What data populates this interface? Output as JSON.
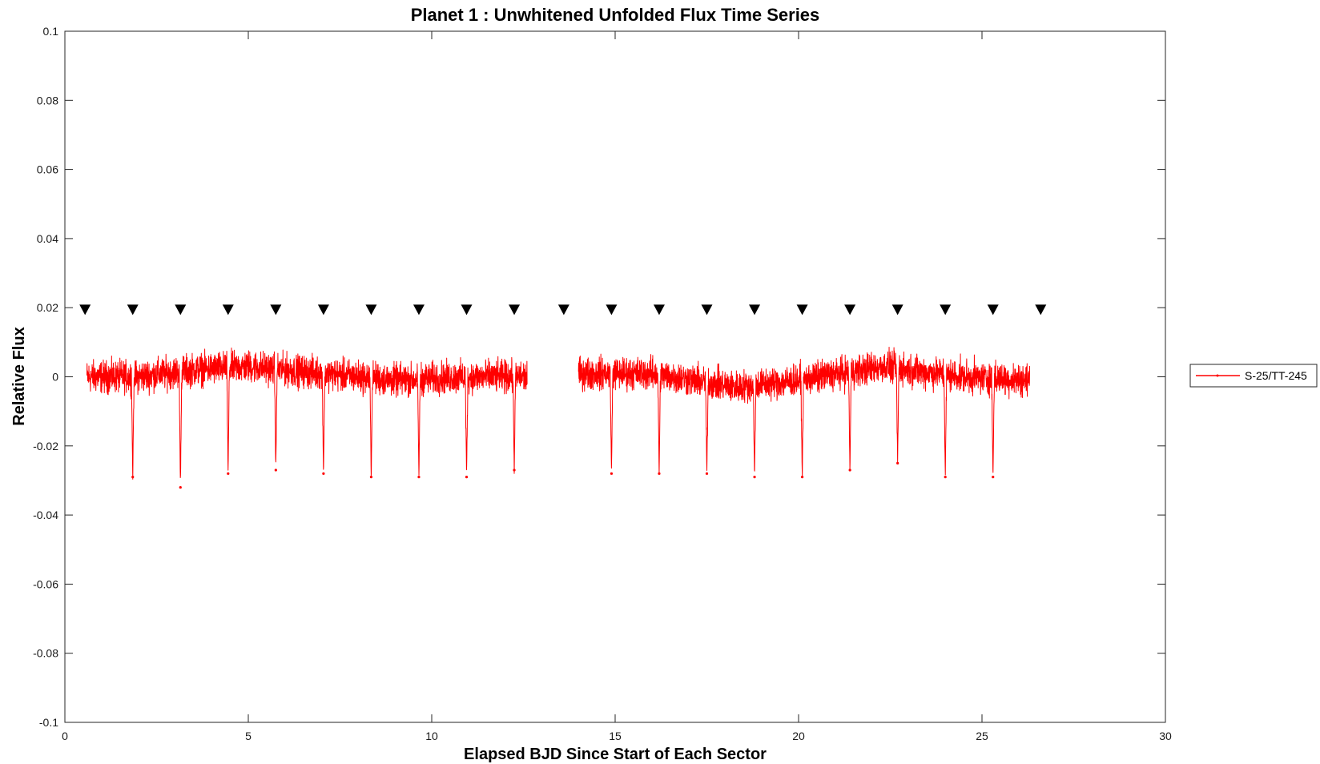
{
  "chart_data": {
    "type": "line",
    "title": "Planet 1 : Unwhitened Unfolded Flux Time Series",
    "xlabel": "Elapsed BJD Since Start of Each Sector",
    "ylabel": "Relative Flux",
    "xlim": [
      0,
      30
    ],
    "ylim": [
      -0.1,
      0.1
    ],
    "xticks": [
      0,
      5,
      10,
      15,
      20,
      25,
      30
    ],
    "xtick_labels": [
      "0",
      "5",
      "10",
      "15",
      "20",
      "25",
      "30"
    ],
    "yticks": [
      0.1,
      0.08,
      0.06,
      0.04,
      0.02,
      0,
      -0.02,
      -0.04,
      -0.06,
      -0.08,
      -0.1
    ],
    "ytick_labels": [
      "0.1",
      "0.08",
      "0.06",
      "0.04",
      "0.02",
      "0",
      "-0.02",
      "-0.04",
      "-0.06",
      "-0.08",
      "-0.1"
    ],
    "grid": false,
    "legend_position": "right",
    "series": [
      {
        "name": "S-25/TT-245",
        "color": "#ff0000",
        "segments": [
          {
            "x_start": 0.6,
            "x_end": 12.6
          },
          {
            "x_start": 14.0,
            "x_end": 26.3
          }
        ],
        "baseline": [
          {
            "x": 0.6,
            "y": 0.0
          },
          {
            "x": 2.0,
            "y": 0.0
          },
          {
            "x": 3.5,
            "y": 0.002
          },
          {
            "x": 5.0,
            "y": 0.003
          },
          {
            "x": 7.0,
            "y": 0.001
          },
          {
            "x": 9.0,
            "y": -0.001
          },
          {
            "x": 11.0,
            "y": 0.0
          },
          {
            "x": 12.6,
            "y": 0.0
          },
          {
            "x": 14.0,
            "y": 0.001
          },
          {
            "x": 16.0,
            "y": 0.001
          },
          {
            "x": 18.3,
            "y": -0.003
          },
          {
            "x": 20.0,
            "y": -0.001
          },
          {
            "x": 22.3,
            "y": 0.003
          },
          {
            "x": 24.5,
            "y": 0.0
          },
          {
            "x": 26.3,
            "y": -0.001
          }
        ],
        "noise_amplitude": 0.005,
        "transits": [
          {
            "x": 1.85,
            "depth": -0.029
          },
          {
            "x": 3.15,
            "depth": -0.032
          },
          {
            "x": 4.45,
            "depth": -0.028
          },
          {
            "x": 5.75,
            "depth": -0.027
          },
          {
            "x": 7.05,
            "depth": -0.028
          },
          {
            "x": 8.35,
            "depth": -0.029
          },
          {
            "x": 9.65,
            "depth": -0.029
          },
          {
            "x": 10.95,
            "depth": -0.029
          },
          {
            "x": 12.25,
            "depth": -0.027
          },
          {
            "x": 14.9,
            "depth": -0.028
          },
          {
            "x": 16.2,
            "depth": -0.028
          },
          {
            "x": 17.5,
            "depth": -0.028
          },
          {
            "x": 18.8,
            "depth": -0.029
          },
          {
            "x": 20.1,
            "depth": -0.029
          },
          {
            "x": 21.4,
            "depth": -0.027
          },
          {
            "x": 22.7,
            "depth": -0.025
          },
          {
            "x": 24.0,
            "depth": -0.029
          },
          {
            "x": 25.3,
            "depth": -0.029
          }
        ]
      }
    ],
    "transit_markers": {
      "marker": "downward-triangle",
      "color": "#000000",
      "y": 0.0195,
      "x": [
        0.55,
        1.85,
        3.15,
        4.45,
        5.75,
        7.05,
        8.35,
        9.65,
        10.95,
        12.25,
        13.6,
        14.9,
        16.2,
        17.5,
        18.8,
        20.1,
        21.4,
        22.7,
        24.0,
        25.3,
        26.6
      ]
    }
  }
}
